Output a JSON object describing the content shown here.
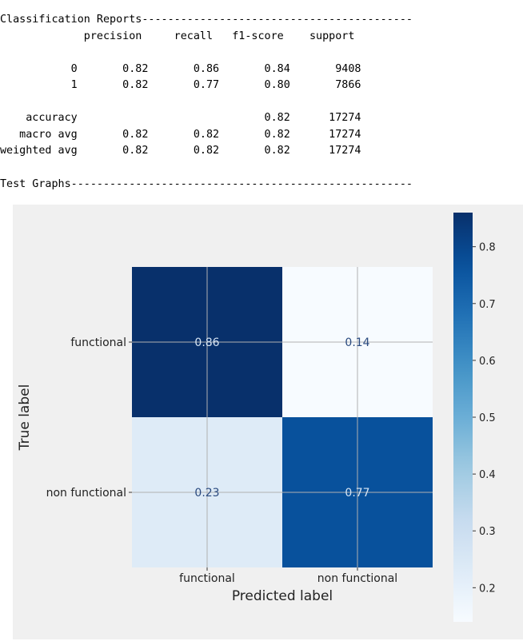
{
  "report": {
    "title": "Classification Reports",
    "columns": [
      "precision",
      "recall",
      "f1-score",
      "support"
    ],
    "rows": [
      {
        "label": "0",
        "precision": "0.82",
        "recall": "0.86",
        "f1": "0.84",
        "support": "9408"
      },
      {
        "label": "1",
        "precision": "0.82",
        "recall": "0.77",
        "f1": "0.80",
        "support": "7866"
      },
      {
        "label": "",
        "precision": "",
        "recall": "",
        "f1": "",
        "support": ""
      },
      {
        "label": "accuracy",
        "precision": "",
        "recall": "",
        "f1": "0.82",
        "support": "17274"
      },
      {
        "label": "macro avg",
        "precision": "0.82",
        "recall": "0.82",
        "f1": "0.82",
        "support": "17274"
      },
      {
        "label": "weighted avg",
        "precision": "0.82",
        "recall": "0.82",
        "f1": "0.82",
        "support": "17274"
      }
    ]
  },
  "graphs_header": "Test Graphs",
  "chart_data": {
    "type": "heatmap",
    "x_categories": [
      "functional",
      "non functional"
    ],
    "y_categories": [
      "functional",
      "non functional"
    ],
    "values": [
      [
        0.86,
        0.14
      ],
      [
        0.23,
        0.77
      ]
    ],
    "value_labels": [
      [
        "0.86",
        "0.14"
      ],
      [
        "0.23",
        "0.77"
      ]
    ],
    "xlabel": "Predicted label",
    "ylabel": "True label",
    "colormap": "Blues",
    "colorbar": {
      "min": 0.14,
      "max": 0.86,
      "ticks": [
        0.2,
        0.3,
        0.4,
        0.5,
        0.6,
        0.7,
        0.8
      ],
      "tick_labels": [
        "0.2",
        "0.3",
        "0.4",
        "0.5",
        "0.6",
        "0.7",
        "0.8"
      ]
    },
    "grid": true,
    "colors": {
      "dark": "#08306b",
      "mid_dark": "#08519c",
      "pale": "#dbe9f6",
      "palest": "#f7fbff",
      "annotation_on_light": "#2a4a7f",
      "annotation_on_dark": "#d6e4f3",
      "background": "#f0f0f0",
      "grid": "#b0b0b0"
    }
  }
}
